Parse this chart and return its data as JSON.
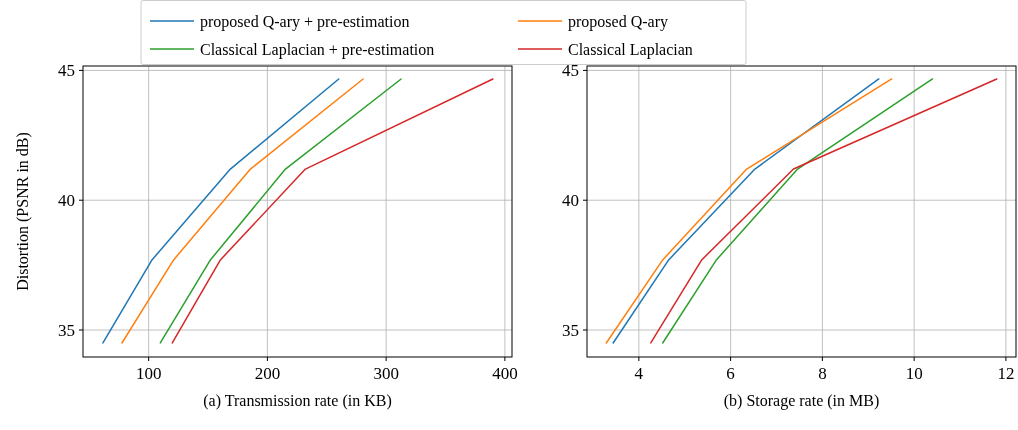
{
  "chart_data": [
    {
      "type": "line",
      "xlabel": "(a) Transmission rate (in KB)",
      "ylabel": "Distortion (PSNR in dB)",
      "xlim": [
        44.7,
        406
      ],
      "xticks": [
        100,
        200,
        300,
        400
      ],
      "ylim": [
        33.96,
        45.17
      ],
      "yticks": [
        35,
        40,
        45
      ],
      "grid": true,
      "legend": "top",
      "line_style": "solid",
      "marker": "none",
      "series": [
        {
          "name": "proposed Q-ary + pre-estimation",
          "color": "#1f77b4",
          "x": [
            61.5,
            102.8,
            168.8,
            260.1
          ],
          "values": [
            34.5,
            37.7,
            41.2,
            44.67
          ]
        },
        {
          "name": "proposed Q-ary",
          "color": "#ff7f0e",
          "x": [
            77.5,
            121,
            185.7,
            280.6
          ],
          "values": [
            34.5,
            37.7,
            41.2,
            44.67
          ]
        },
        {
          "name": "Classical Laplacian + pre-estimation",
          "color": "#2ca02c",
          "x": [
            109.8,
            152,
            215.2,
            312.6
          ],
          "values": [
            34.5,
            37.7,
            41.2,
            44.67
          ]
        },
        {
          "name": "Classical Laplacian",
          "color": "#d62728",
          "x": [
            119.9,
            160.4,
            232,
            389.9
          ],
          "values": [
            34.5,
            37.7,
            41.2,
            44.67
          ]
        }
      ]
    },
    {
      "type": "line",
      "xlabel": "(b) Storage rate (in MB)",
      "xlim": [
        2.87,
        12.22
      ],
      "xticks": [
        4,
        6,
        8,
        10,
        12
      ],
      "ylim": [
        33.96,
        45.17
      ],
      "yticks": [
        35,
        40,
        45
      ],
      "grid": true,
      "line_style": "solid",
      "marker": "none",
      "series": [
        {
          "color": "#1f77b4",
          "x": [
            3.44,
            4.65,
            6.53,
            9.23
          ],
          "values": [
            34.5,
            37.7,
            41.2,
            44.67
          ]
        },
        {
          "color": "#ff7f0e",
          "x": [
            3.29,
            4.52,
            6.35,
            9.51
          ],
          "values": [
            34.5,
            37.7,
            41.2,
            44.67
          ]
        },
        {
          "color": "#2ca02c",
          "x": [
            4.52,
            5.69,
            7.46,
            10.4
          ],
          "values": [
            34.5,
            37.7,
            41.2,
            44.67
          ]
        },
        {
          "color": "#d62728",
          "x": [
            4.26,
            5.37,
            7.37,
            11.8
          ],
          "values": [
            34.5,
            37.7,
            41.2,
            44.67
          ]
        }
      ]
    }
  ]
}
